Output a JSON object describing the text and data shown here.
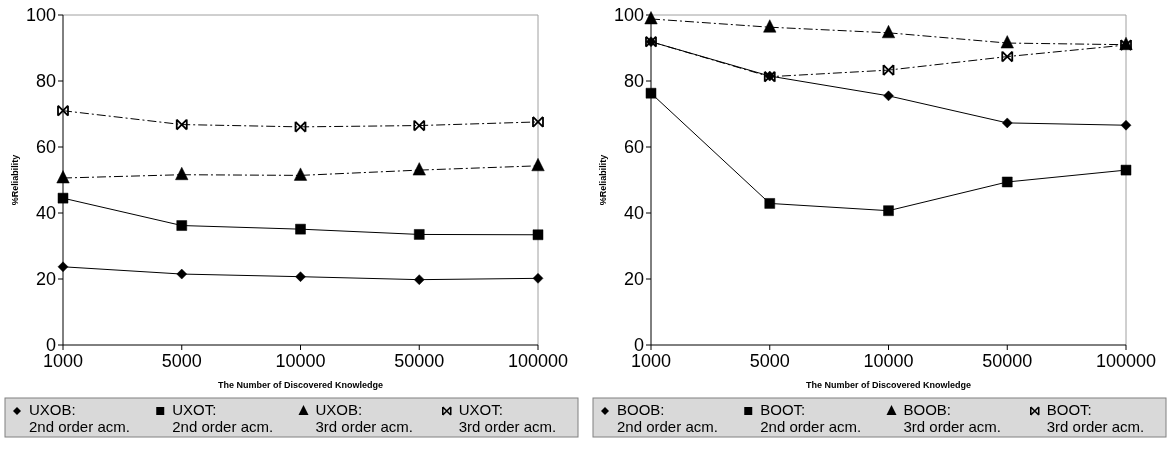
{
  "chart_data": [
    {
      "type": "line",
      "xlabel": "The Number of Discovered Knowledge",
      "ylabel": "%Reliability",
      "categories": [
        "1000",
        "5000",
        "10000",
        "50000",
        "100000"
      ],
      "ylim": [
        0,
        100
      ],
      "yticks": [
        0,
        20,
        40,
        60,
        80,
        100
      ],
      "grid": false,
      "legend": "bottom",
      "series": [
        {
          "name": "UXOB:\n2nd order acm.",
          "color": "#000000",
          "marker": "diamond",
          "line_style": "solid",
          "values": [
            23.7,
            21.5,
            20.7,
            19.8,
            20.2
          ]
        },
        {
          "name": "UXOT:\n2nd order acm.",
          "color": "#000000",
          "marker": "square",
          "line_style": "solid",
          "values": [
            44.5,
            36.2,
            35.1,
            33.5,
            33.4
          ]
        },
        {
          "name": "UXOB:\n3rd order acm.",
          "color": "#000000",
          "marker": "triangle",
          "line_style": "dashed",
          "values": [
            50.6,
            51.6,
            51.4,
            53.0,
            54.3
          ]
        },
        {
          "name": "UXOT:\n3rd order acm.",
          "color": "#000000",
          "marker": "cross",
          "line_style": "dashed",
          "values": [
            71.0,
            66.8,
            66.1,
            66.5,
            67.6
          ]
        }
      ]
    },
    {
      "type": "line",
      "xlabel": "The Number of Discovered Knowledge",
      "ylabel": "%Reliability",
      "categories": [
        "1000",
        "5000",
        "10000",
        "50000",
        "100000"
      ],
      "ylim": [
        0,
        100
      ],
      "yticks": [
        0,
        20,
        40,
        60,
        80,
        100
      ],
      "grid": false,
      "legend": "bottom",
      "series": [
        {
          "name": "BOOB:\n2nd order acm.",
          "color": "#000000",
          "marker": "diamond",
          "line_style": "solid",
          "values": [
            91.9,
            81.5,
            75.5,
            67.3,
            66.6
          ]
        },
        {
          "name": "BOOT:\n2nd order acm.",
          "color": "#000000",
          "marker": "square",
          "line_style": "solid",
          "values": [
            76.3,
            42.9,
            40.7,
            49.4,
            53.0
          ]
        },
        {
          "name": "BOOB:\n3rd order acm.",
          "color": "#000000",
          "marker": "triangle",
          "line_style": "dashed",
          "values": [
            98.8,
            96.3,
            94.6,
            91.5,
            91.0
          ]
        },
        {
          "name": "BOOT:\n3rd order acm.",
          "color": "#000000",
          "marker": "cross",
          "line_style": "dashed",
          "values": [
            91.9,
            81.3,
            83.3,
            87.4,
            90.9
          ]
        }
      ]
    }
  ]
}
